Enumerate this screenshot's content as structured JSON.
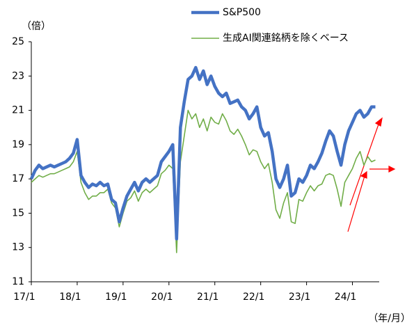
{
  "chart_data": {
    "type": "line",
    "y_unit": "（倍）",
    "x_unit": "（年/月）",
    "x": [
      0,
      1,
      2,
      3,
      4,
      5,
      6,
      7,
      8,
      9,
      10,
      11,
      12,
      13,
      14,
      15,
      16,
      17,
      18,
      19,
      20,
      21,
      22,
      23,
      24,
      25,
      26,
      27,
      28,
      29,
      30,
      31,
      32,
      33,
      34,
      35,
      36,
      37,
      38,
      39,
      40,
      41,
      42,
      43,
      44,
      45,
      46,
      47,
      48,
      49,
      50,
      51,
      52,
      53,
      54,
      55,
      56,
      57,
      58,
      59,
      60,
      61,
      62,
      63,
      64,
      65,
      66,
      67,
      68,
      69,
      70,
      71,
      72,
      73,
      74,
      75,
      76,
      77,
      78,
      79,
      80,
      81,
      82,
      83,
      84,
      85,
      86,
      87,
      88,
      89,
      90
    ],
    "series": [
      {
        "name": "S&P500",
        "color": "#4472c4",
        "width": 4.5,
        "values": [
          17.0,
          17.5,
          17.8,
          17.6,
          17.7,
          17.8,
          17.7,
          17.8,
          17.9,
          18.0,
          18.2,
          18.5,
          19.3,
          17.2,
          16.8,
          16.5,
          16.7,
          16.6,
          16.8,
          16.6,
          16.7,
          15.8,
          15.6,
          14.5,
          15.3,
          16.0,
          16.4,
          16.8,
          16.3,
          16.8,
          17.0,
          16.8,
          17.0,
          17.2,
          18.0,
          18.3,
          18.6,
          19.0,
          13.5,
          20.0,
          21.5,
          22.8,
          23.0,
          23.5,
          22.8,
          23.3,
          22.5,
          23.0,
          22.4,
          22.0,
          21.8,
          22.0,
          21.4,
          21.5,
          21.6,
          21.2,
          21.0,
          20.5,
          20.8,
          21.2,
          20.0,
          19.5,
          19.7,
          18.6,
          17.0,
          16.5,
          17.0,
          17.8,
          16.0,
          16.2,
          17.0,
          16.8,
          17.2,
          17.8,
          17.6,
          18.0,
          18.5,
          19.2,
          19.8,
          19.5,
          18.6,
          17.8,
          19.0,
          19.8,
          20.3,
          20.8,
          21.0,
          20.6,
          20.8,
          21.2,
          21.2
        ]
      },
      {
        "name": "生成AI関連銘柄を除くベース",
        "color": "#70ad47",
        "width": 1.6,
        "values": [
          16.8,
          17.0,
          17.2,
          17.1,
          17.2,
          17.3,
          17.3,
          17.4,
          17.5,
          17.6,
          17.7,
          18.0,
          18.6,
          16.8,
          16.2,
          15.8,
          16.0,
          16.0,
          16.2,
          16.2,
          16.4,
          15.6,
          15.3,
          14.2,
          15.0,
          15.7,
          15.9,
          16.3,
          15.7,
          16.2,
          16.4,
          16.2,
          16.4,
          16.6,
          17.3,
          17.5,
          17.8,
          17.6,
          12.7,
          18.0,
          19.5,
          21.0,
          20.5,
          20.8,
          20.0,
          20.5,
          19.8,
          20.6,
          20.3,
          20.2,
          20.8,
          20.4,
          19.8,
          19.6,
          19.9,
          19.5,
          19.0,
          18.4,
          18.7,
          18.6,
          18.0,
          17.6,
          17.9,
          16.8,
          15.2,
          14.7,
          15.6,
          16.2,
          14.5,
          14.4,
          15.8,
          15.7,
          16.2,
          16.6,
          16.3,
          16.6,
          16.7,
          17.2,
          17.3,
          17.2,
          16.4,
          15.4,
          16.8,
          17.2,
          17.6,
          18.2,
          18.6,
          17.8,
          18.3,
          18.0,
          18.1
        ]
      }
    ],
    "xlim": [
      0,
      91
    ],
    "xticks": [
      {
        "value": 0,
        "label": "17/1"
      },
      {
        "value": 12,
        "label": "18/1"
      },
      {
        "value": 24,
        "label": "19/1"
      },
      {
        "value": 36,
        "label": "20/1"
      },
      {
        "value": 48,
        "label": "21/1"
      },
      {
        "value": 60,
        "label": "22/1"
      },
      {
        "value": 72,
        "label": "23/1"
      },
      {
        "value": 84,
        "label": "24/1"
      }
    ],
    "ylim": [
      11,
      25
    ],
    "yticks": [
      11,
      13,
      15,
      17,
      19,
      21,
      23,
      25
    ],
    "grid": false
  }
}
